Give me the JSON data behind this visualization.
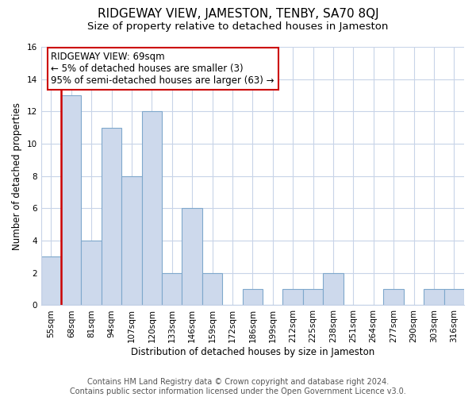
{
  "title": "RIDGEWAY VIEW, JAMESTON, TENBY, SA70 8QJ",
  "subtitle": "Size of property relative to detached houses in Jameston",
  "xlabel": "Distribution of detached houses by size in Jameston",
  "ylabel": "Number of detached properties",
  "bar_labels": [
    "55sqm",
    "68sqm",
    "81sqm",
    "94sqm",
    "107sqm",
    "120sqm",
    "133sqm",
    "146sqm",
    "159sqm",
    "172sqm",
    "186sqm",
    "199sqm",
    "212sqm",
    "225sqm",
    "238sqm",
    "251sqm",
    "264sqm",
    "277sqm",
    "290sqm",
    "303sqm",
    "316sqm"
  ],
  "bar_values": [
    3,
    13,
    4,
    11,
    8,
    12,
    2,
    6,
    2,
    0,
    1,
    0,
    1,
    1,
    2,
    0,
    0,
    1,
    0,
    1,
    1
  ],
  "bar_color": "#cdd9ec",
  "bar_edge_color": "#7fa8cc",
  "highlight_line_color": "#cc0000",
  "annotation_line1": "RIDGEWAY VIEW: 69sqm",
  "annotation_line2": "← 5% of detached houses are smaller (3)",
  "annotation_line3": "95% of semi-detached houses are larger (63) →",
  "annotation_box_color": "#ffffff",
  "annotation_box_edge_color": "#cc0000",
  "ylim": [
    0,
    16
  ],
  "yticks": [
    0,
    2,
    4,
    6,
    8,
    10,
    12,
    14,
    16
  ],
  "footer_line1": "Contains HM Land Registry data © Crown copyright and database right 2024.",
  "footer_line2": "Contains public sector information licensed under the Open Government Licence v3.0.",
  "bg_color": "#ffffff",
  "grid_color": "#c8d4e8",
  "title_fontsize": 11,
  "subtitle_fontsize": 9.5,
  "axis_label_fontsize": 8.5,
  "tick_fontsize": 7.5,
  "annotation_fontsize": 8.5,
  "footer_fontsize": 7
}
